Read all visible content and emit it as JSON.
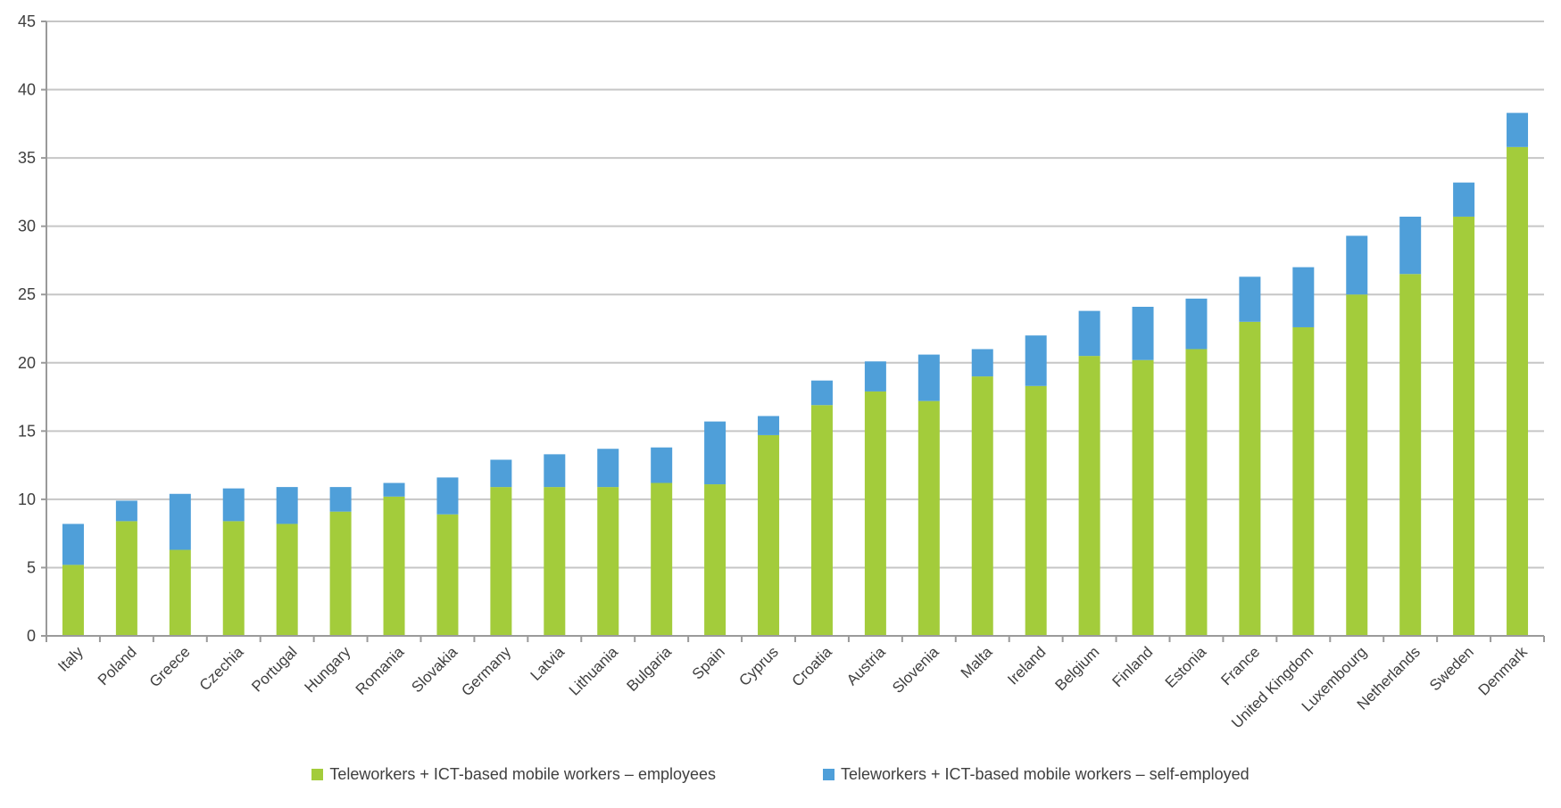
{
  "chart_data": {
    "type": "bar",
    "stacked": true,
    "title": "",
    "xlabel": "",
    "ylabel": "",
    "categories": [
      "Italy",
      "Poland",
      "Greece",
      "Czechia",
      "Portugal",
      "Hungary",
      "Romania",
      "Slovakia",
      "Germany",
      "Latvia",
      "Lithuania",
      "Bulgaria",
      "Spain",
      "Cyprus",
      "Croatia",
      "Austria",
      "Slovenia",
      "Malta",
      "Ireland",
      "Belgium",
      "Finland",
      "Estonia",
      "France",
      "United Kingdom",
      "Luxembourg",
      "Netherlands",
      "Sweden",
      "Denmark"
    ],
    "series": [
      {
        "name": "Teleworkers + ICT-based mobile workers – employees",
        "color": "#a3cc3b",
        "values": [
          5.2,
          8.4,
          6.3,
          8.4,
          8.2,
          9.1,
          10.2,
          8.9,
          10.9,
          10.9,
          10.9,
          11.2,
          11.1,
          14.7,
          16.9,
          17.9,
          17.2,
          19.0,
          18.3,
          20.5,
          20.2,
          21.0,
          23.0,
          22.6,
          25.0,
          26.5,
          30.7,
          35.8
        ]
      },
      {
        "name": "Teleworkers + ICT-based mobile workers – self-employed",
        "color": "#4f9fd9",
        "values": [
          3.0,
          1.5,
          4.1,
          2.4,
          2.7,
          1.8,
          1.0,
          2.7,
          2.0,
          2.4,
          2.8,
          2.6,
          4.6,
          1.4,
          1.8,
          2.2,
          3.4,
          2.0,
          3.7,
          3.3,
          3.9,
          3.7,
          3.3,
          4.4,
          4.3,
          4.2,
          2.5,
          2.5
        ]
      }
    ],
    "totals": [
      8.2,
      9.9,
      10.4,
      10.8,
      10.9,
      10.9,
      11.2,
      11.6,
      12.9,
      13.3,
      13.7,
      13.8,
      15.7,
      16.1,
      18.7,
      20.1,
      20.6,
      21.0,
      22.0,
      23.8,
      24.1,
      24.7,
      26.3,
      27.0,
      29.3,
      30.7,
      33.2,
      38.3
    ],
    "ylim": [
      0,
      45
    ],
    "yticks": [
      0,
      5,
      10,
      15,
      20,
      25,
      30,
      35,
      40,
      45
    ],
    "grid": true,
    "legend_position": "bottom"
  },
  "style": {
    "grid_color": "#c6c6c6",
    "axis_color": "#9a9a9a",
    "label_color": "#3f3f3f",
    "background": "#ffffff"
  }
}
